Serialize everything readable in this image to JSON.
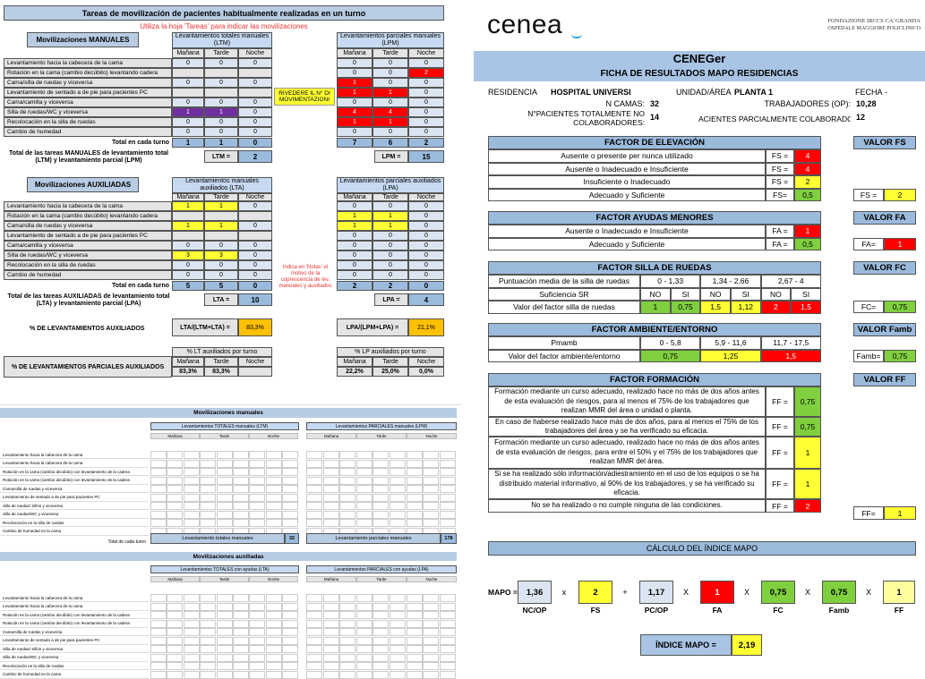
{
  "left": {
    "title": "Tareas de movilización de pacientes habitualmente realizadas en un turno",
    "subtitle": "Utiliza la hoja 'Tareas' para indicar las movilizaciones",
    "manual_btn": "Movilizaciones MANUALES",
    "aux_btn": "Movilizaciones AUXILIADAS",
    "ltm_hdr": "Levantamientos totales manuales (LTM)",
    "lpm_hdr": "Levantamientos parciales manuales (LPM)",
    "lta_hdr": "Levantamientos manuales auxiliados (LTA)",
    "lpa_hdr": "Levantamientos parciales auxiliados (LPA)",
    "shifts": [
      "Mañana",
      "Tarde",
      "Noche"
    ],
    "rows": [
      "Levantamiento hacia la cabecera de la cama",
      "Rotación en la cama (cambio decúbito) levantando cadera",
      "Cama/silla de ruedas y viceversa",
      "Levantamiento de sentado a de pie para pacientes PC",
      "Cama/camilla y viceversa",
      "Silla de ruedas/WC y viceversa",
      "Recolocación en la silla de ruedas",
      "Cambio de humedad"
    ],
    "ltm": [
      [
        "0",
        "0",
        "0"
      ],
      [
        "",
        "",
        ""
      ],
      [
        "0",
        "0",
        "0"
      ],
      [
        "",
        "",
        ""
      ],
      [
        "0",
        "0",
        "0"
      ],
      [
        "1",
        "1",
        "0"
      ],
      [
        "0",
        "0",
        "0"
      ],
      [
        "0",
        "0",
        "0"
      ]
    ],
    "lpm": [
      [
        "0",
        "0",
        "0"
      ],
      [
        "0",
        "0",
        "2"
      ],
      [
        "1",
        "0",
        "0"
      ],
      [
        "1",
        "1",
        "0"
      ],
      [
        "0",
        "0",
        "0"
      ],
      [
        "4",
        "4",
        "0"
      ],
      [
        "1",
        "1",
        "0"
      ],
      [
        "0",
        "0",
        "0"
      ]
    ],
    "lta": [
      [
        "1",
        "1",
        "0"
      ],
      [
        "",
        "",
        ""
      ],
      [
        "1",
        "1",
        "0"
      ],
      [
        "",
        "",
        ""
      ],
      [
        "0",
        "0",
        "0"
      ],
      [
        "3",
        "3",
        "0"
      ],
      [
        "0",
        "0",
        "0"
      ],
      [
        "0",
        "0",
        "0"
      ]
    ],
    "lpa": [
      [
        "0",
        "0",
        "0"
      ],
      [
        "1",
        "1",
        "0"
      ],
      [
        "1",
        "1",
        "0"
      ],
      [
        "0",
        "0",
        "0"
      ],
      [
        "0",
        "0",
        "0"
      ],
      [
        "0",
        "0",
        "0"
      ],
      [
        "0",
        "0",
        "0"
      ],
      [
        "0",
        "0",
        "0"
      ]
    ],
    "total_label": "Total en cada turno",
    "ltm_total": [
      "1",
      "1",
      "0"
    ],
    "lpm_total": [
      "7",
      "6",
      "2"
    ],
    "lta_total": [
      "5",
      "5",
      "0"
    ],
    "lpa_total": [
      "2",
      "2",
      "0"
    ],
    "total_manual_label": "Total de las tareas MANUALES de levantamiento total (LTM) y levantamiento parcial (LPM)",
    "ltm_label": "LTM =",
    "ltm_value": "2",
    "lpm_label": "LPM =",
    "lpm_value": "15",
    "total_aux_label": "Total de las tareas AUXILIADAS de levantamiento total (LTA) y levantamiento parcial (LPA)",
    "lta_label": "LTA =",
    "lta_value": "10",
    "lpa_label": "LPA =",
    "lpa_value": "4",
    "note_review": "RIVEDERE IL N° DI MOVIMENTAZIONI",
    "note_red": "Indica en 'Notas' el motivo de la coprescencia de lev. manuales y auxiliados",
    "pct_aux_label": "% DE LEVANTAMIENTOS AUXILIADOS",
    "lta_formula": "LTA/(LTM+LTA) =",
    "lta_pct": "83,3%",
    "lpa_formula": "LPA/(LPM+LPA) =",
    "lpa_pct": "21,1%",
    "pct_partial_label": "% DE LEVANTAMIENTOS PARCIALES AUXILIADOS",
    "lt_aux_hdr": "% LT auxiliados por turno",
    "lp_aux_hdr": "% LP auxiliados por turno",
    "lt_aux_vals": [
      "83,3%",
      "83,3%",
      ""
    ],
    "lp_aux_vals": [
      "22,2%",
      "25,0%",
      "0,0%"
    ]
  },
  "bottom": {
    "title1": "Movilizaciones manuales",
    "t1_left": "Levantamientos TOTALES manuales (LTM)",
    "t1_right": "Levantamientos PARCIALES manuales (LPM)",
    "sum1_left": "Levantamiento totales manuales",
    "sum1_left_val": "32",
    "sum1_right": "Levantamiento parciales manuales",
    "sum1_right_val": "178",
    "title2": "Movilizaciones auxiliadas",
    "t2_left": "Levantamientos TOTALES con ayudas (LTA)",
    "t2_right": "Levantamientos PARCIALES con ayudas (LPA)",
    "rows": [
      "Levantamiento hacia la cabecera de la cama",
      "Levantamiento hacia la cabecera de la cama",
      "Rotación en la cama (cambio decúbito) con levantamiento de la cadera",
      "Rotación en la cama (cambio decúbito) con levantamiento de la cadera",
      "Camarsilla de ruedas y viceversa",
      "Levantamiento de sentado a de pie para pacientes PC",
      "Silla de ruedas/ Sillón y viceversa",
      "Silla de ruedas/WC y viceversa",
      "Recolocación en la silla de ruedas",
      "Cambio de humedad en la cama"
    ],
    "total_label": "Total de cada turno"
  },
  "right": {
    "brand": "cenea",
    "foundation": "FONDAZIONE IRCCS CA' GRANDA",
    "hospital": "OSPEDALE MAGGIORE POLICLINICO",
    "app_title": "CENEGer",
    "doc_title": "FICHA DE RESULTADOS MAPO RESIDENCIAS",
    "residencia_label": "RESIDENCIA",
    "residencia_value": "HOSPITAL UNIVERSI",
    "unidad_label": "UNIDAD/ÁREA",
    "unidad_value": "PLANTA 1",
    "fecha_label": "FECHA",
    "fecha_value": "-",
    "camas_label": "N CAMAS:",
    "camas_value": "32",
    "trab_label": "TRABAJADORES (OP):",
    "trab_value": "10,28",
    "ntc_label": "N°PACIENTES TOTALMENTE NO COLABORADORES:",
    "ntc_value": "14",
    "npc_label": "ACIENTES PARCIALMENTE COLABORADOR",
    "npc_value": "12",
    "fs_title": "FACTOR DE ELEVACIÓN",
    "fs_val_title": "VALOR FS",
    "fs_rows": [
      {
        "label": "Ausente o presente per nunca utilizado",
        "key": "FS =",
        "val": "4"
      },
      {
        "label": "Ausente o Inadecuado e Insuficiente",
        "key": "FS =",
        "val": "4"
      },
      {
        "label": "Insuficiente o Inadecuado",
        "key": "FS =",
        "val": "2"
      },
      {
        "label": "Adecuado y Suficiente",
        "key": "FS=",
        "val": "0,5"
      }
    ],
    "fs_result_label": "FS =",
    "fs_result": "2",
    "fa_title": "FACTOR AYUDAS MENORES",
    "fa_val_title": "VALOR FA",
    "fa_rows": [
      {
        "label": "Ausente o Inadecuado e Insuficiente",
        "key": "FA =",
        "val": "1"
      },
      {
        "label": "Adecuado y Suficiente",
        "key": "FA =",
        "val": "0,5"
      }
    ],
    "fa_result_label": "FA=",
    "fa_result": "1",
    "fc_title": "FACTOR SILLA DE RUEDAS",
    "fc_val_title": "VALOR FC",
    "fc_punt_label": "Puntuación media de la silla de ruedas",
    "fc_ranges": [
      "0 - 1,33",
      "1,34 - 2,66",
      "2,67 - 4"
    ],
    "fc_suf_label": "Suficiencia SR",
    "fc_nosi": [
      "NO",
      "SI",
      "NO",
      "SI",
      "NO",
      "SI"
    ],
    "fc_val_label": "Valor del factor silla de ruedas",
    "fc_vals": [
      "1",
      "0,75",
      "1,5",
      "1,12",
      "2",
      "1,5"
    ],
    "fc_result_label": "FC=",
    "fc_result": "0,75",
    "famb_title": "FACTOR AMBIENTE/ENTORNO",
    "famb_val_title": "VALOR Famb",
    "famb_pm_label": "Pmamb",
    "famb_ranges": [
      "0 - 5,8",
      "5,9 - 11,6",
      "11,7 - 17,5"
    ],
    "famb_val_label": "Valor del factor ambiente/entorno",
    "famb_vals": [
      "0,75",
      "1,25",
      "1,5"
    ],
    "famb_result_label": "Famb=",
    "famb_result": "0,75",
    "ff_title": "FACTOR FORMACIÓN",
    "ff_val_title": "VALOR FF",
    "ff_rows": [
      {
        "label": "Formación mediante un curso adecuado, realizado hace no más de dos años antes de esta evaluación de riesgos, para al menos el 75% de los trabajadores que realizan MMR del área o unidad o planta.",
        "key": "FF =",
        "val": "0,75"
      },
      {
        "label": "En caso de haberse realizado hace más de dos años, para al menos el 75% de los trabajadores del área y se ha verificado su eficacia.",
        "key": "FF =",
        "val": "0,75"
      },
      {
        "label": "Formación mediante un curso adecuado, realizado hace no más de dos años antes de esta evaluación de riesgos, para entre el 50% y el 75% de los trabajadores que realizan MMR del área.",
        "key": "FF =",
        "val": "1"
      },
      {
        "label": "Si se ha realizado sólo información/adiestramiento en el uso de los equipos o se ha distribuido material informativo, al 90% de los trabajadores, y se ha verificado su eficacia.",
        "key": "FF =",
        "val": "1"
      },
      {
        "label": "No se ha realizado o no cumple ninguna de las condiciones.",
        "key": "FF =",
        "val": "2"
      }
    ],
    "ff_result_label": "FF=",
    "ff_result": "1",
    "calc_title": "CÁLCULO DEL ÍNDICE MAPO",
    "mapo_label": "MAPO =",
    "f_ncop": "1,36",
    "f_fs": "2",
    "f_pcop": "1,17",
    "f_fa": "1",
    "f_fc": "0,75",
    "f_famb": "0,75",
    "f_ff": "1",
    "n_ncop": "NC/OP",
    "n_fs": "FS",
    "n_pcop": "PC/OP",
    "n_fa": "FA",
    "n_fc": "FC",
    "n_famb": "Famb",
    "n_ff": "FF",
    "op_x": "x",
    "op_plus": "+",
    "op_X": "X",
    "index_label": "ÍNDICE MAPO =",
    "index_value": "2,19"
  },
  "colors": {
    "accent_blue": "#9bbbdd",
    "red": "#ff0000",
    "yellow": "#ffff33",
    "green": "#7fcf3f",
    "purple": "#7030a0",
    "orange": "#ffc000"
  }
}
